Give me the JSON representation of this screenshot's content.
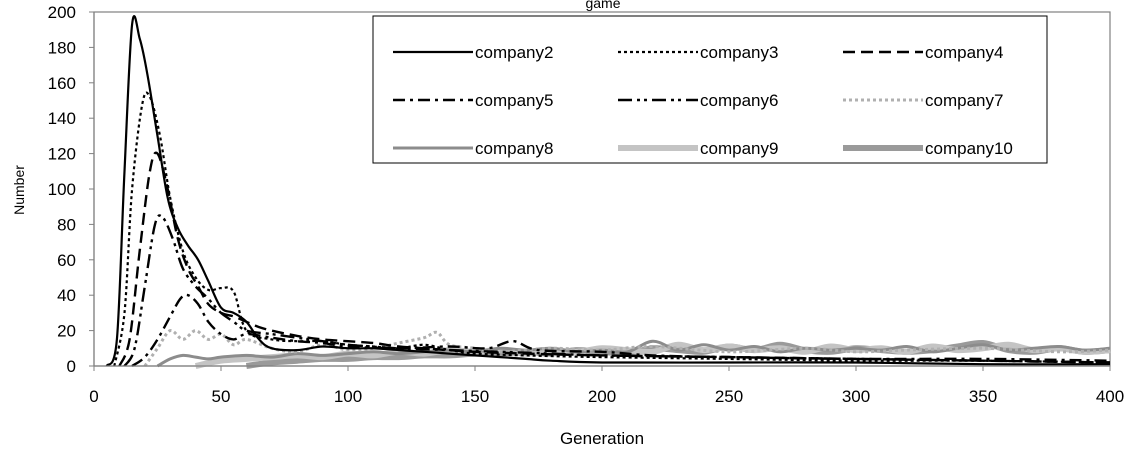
{
  "chart_data": {
    "type": "line",
    "title": "game",
    "xlabel": "Generation",
    "ylabel": "Number",
    "xlim": [
      0,
      400
    ],
    "ylim": [
      0,
      200
    ],
    "x_ticks": [
      "0",
      "50",
      "100",
      "150",
      "200",
      "250",
      "300",
      "350",
      "400"
    ],
    "y_ticks": [
      "0",
      "20",
      "40",
      "60",
      "80",
      "100",
      "120",
      "140",
      "160",
      "180",
      "200"
    ],
    "grid": false,
    "legend_position": "top-right",
    "series": [
      {
        "name": "company2",
        "color": "#000000",
        "style": "solid",
        "points": [
          [
            5,
            0
          ],
          [
            9,
            15
          ],
          [
            12,
            110
          ],
          [
            15,
            193
          ],
          [
            18,
            185
          ],
          [
            21,
            165
          ],
          [
            25,
            130
          ],
          [
            29,
            95
          ],
          [
            33,
            78
          ],
          [
            37,
            68
          ],
          [
            41,
            60
          ],
          [
            45,
            48
          ],
          [
            50,
            33
          ],
          [
            55,
            30
          ],
          [
            60,
            25
          ],
          [
            65,
            15
          ],
          [
            70,
            10
          ],
          [
            80,
            9
          ],
          [
            90,
            11
          ],
          [
            100,
            10
          ],
          [
            110,
            10
          ],
          [
            120,
            9
          ],
          [
            130,
            8
          ],
          [
            140,
            7
          ],
          [
            150,
            6
          ],
          [
            160,
            5
          ],
          [
            170,
            4
          ],
          [
            180,
            3
          ],
          [
            200,
            2
          ],
          [
            250,
            2
          ],
          [
            300,
            2
          ],
          [
            350,
            1
          ],
          [
            400,
            1
          ]
        ]
      },
      {
        "name": "company3",
        "color": "#000000",
        "style": "dotted",
        "points": [
          [
            8,
            0
          ],
          [
            12,
            30
          ],
          [
            15,
            100
          ],
          [
            19,
            148
          ],
          [
            22,
            152
          ],
          [
            26,
            130
          ],
          [
            30,
            95
          ],
          [
            35,
            65
          ],
          [
            40,
            50
          ],
          [
            45,
            43
          ],
          [
            50,
            44
          ],
          [
            55,
            42
          ],
          [
            60,
            20
          ],
          [
            70,
            15
          ],
          [
            80,
            14
          ],
          [
            90,
            14
          ],
          [
            100,
            12
          ],
          [
            110,
            11
          ],
          [
            120,
            10
          ],
          [
            130,
            12
          ],
          [
            140,
            9
          ],
          [
            150,
            7
          ],
          [
            170,
            6
          ],
          [
            200,
            5
          ],
          [
            250,
            4
          ],
          [
            300,
            3
          ],
          [
            350,
            3
          ],
          [
            400,
            2
          ]
        ]
      },
      {
        "name": "company4",
        "color": "#000000",
        "style": "dashed",
        "points": [
          [
            10,
            0
          ],
          [
            14,
            15
          ],
          [
            18,
            65
          ],
          [
            22,
            110
          ],
          [
            25,
            120
          ],
          [
            29,
            100
          ],
          [
            33,
            72
          ],
          [
            37,
            55
          ],
          [
            41,
            45
          ],
          [
            45,
            35
          ],
          [
            50,
            30
          ],
          [
            55,
            28
          ],
          [
            60,
            25
          ],
          [
            65,
            22
          ],
          [
            70,
            20
          ],
          [
            80,
            17
          ],
          [
            90,
            15
          ],
          [
            100,
            14
          ],
          [
            110,
            13
          ],
          [
            120,
            11
          ],
          [
            130,
            10
          ],
          [
            140,
            9
          ],
          [
            150,
            8
          ],
          [
            170,
            7
          ],
          [
            200,
            6
          ],
          [
            250,
            5
          ],
          [
            300,
            4
          ],
          [
            350,
            3
          ],
          [
            400,
            2
          ]
        ]
      },
      {
        "name": "company5",
        "color": "#000000",
        "style": "dashdot",
        "points": [
          [
            15,
            0
          ],
          [
            20,
            5
          ],
          [
            25,
            15
          ],
          [
            30,
            28
          ],
          [
            34,
            38
          ],
          [
            37,
            40
          ],
          [
            41,
            35
          ],
          [
            45,
            25
          ],
          [
            50,
            18
          ],
          [
            55,
            15
          ],
          [
            60,
            18
          ],
          [
            70,
            16
          ],
          [
            80,
            14
          ],
          [
            90,
            13
          ],
          [
            100,
            11
          ],
          [
            120,
            10
          ],
          [
            140,
            11
          ],
          [
            155,
            10
          ],
          [
            165,
            14
          ],
          [
            175,
            9
          ],
          [
            200,
            8
          ],
          [
            220,
            6
          ],
          [
            250,
            5
          ],
          [
            300,
            4
          ],
          [
            350,
            4
          ],
          [
            400,
            3
          ]
        ]
      },
      {
        "name": "company6",
        "color": "#000000",
        "style": "dashdotdot",
        "points": [
          [
            12,
            0
          ],
          [
            16,
            10
          ],
          [
            20,
            45
          ],
          [
            24,
            80
          ],
          [
            27,
            84
          ],
          [
            31,
            72
          ],
          [
            35,
            55
          ],
          [
            40,
            45
          ],
          [
            45,
            38
          ],
          [
            50,
            30
          ],
          [
            55,
            25
          ],
          [
            60,
            20
          ],
          [
            70,
            18
          ],
          [
            80,
            16
          ],
          [
            90,
            14
          ],
          [
            100,
            12
          ],
          [
            120,
            10
          ],
          [
            140,
            9
          ],
          [
            160,
            8
          ],
          [
            180,
            7
          ],
          [
            200,
            6
          ],
          [
            250,
            5
          ],
          [
            300,
            4
          ],
          [
            350,
            3
          ],
          [
            400,
            2
          ]
        ]
      },
      {
        "name": "company7",
        "color": "#b0b0b0",
        "style": "dotted",
        "points": [
          [
            20,
            0
          ],
          [
            25,
            10
          ],
          [
            30,
            20
          ],
          [
            35,
            15
          ],
          [
            40,
            20
          ],
          [
            45,
            15
          ],
          [
            50,
            18
          ],
          [
            55,
            12
          ],
          [
            60,
            15
          ],
          [
            70,
            10
          ],
          [
            80,
            8
          ],
          [
            90,
            12
          ],
          [
            100,
            9
          ],
          [
            110,
            10
          ],
          [
            120,
            13
          ],
          [
            130,
            16
          ],
          [
            135,
            19
          ],
          [
            140,
            12
          ],
          [
            150,
            10
          ],
          [
            160,
            8
          ],
          [
            180,
            10
          ],
          [
            200,
            9
          ],
          [
            220,
            11
          ],
          [
            250,
            8
          ],
          [
            280,
            10
          ],
          [
            300,
            8
          ],
          [
            320,
            9
          ],
          [
            350,
            10
          ],
          [
            380,
            8
          ],
          [
            400,
            9
          ]
        ]
      },
      {
        "name": "company8",
        "color": "#8c8c8c",
        "style": "solid",
        "points": [
          [
            25,
            0
          ],
          [
            30,
            4
          ],
          [
            35,
            6
          ],
          [
            40,
            5
          ],
          [
            45,
            4
          ],
          [
            50,
            5
          ],
          [
            60,
            6
          ],
          [
            70,
            5
          ],
          [
            80,
            7
          ],
          [
            90,
            6
          ],
          [
            100,
            7
          ],
          [
            110,
            8
          ],
          [
            120,
            7
          ],
          [
            130,
            8
          ],
          [
            140,
            9
          ],
          [
            150,
            8
          ],
          [
            160,
            10
          ],
          [
            170,
            9
          ],
          [
            180,
            10
          ],
          [
            190,
            8
          ],
          [
            200,
            9
          ],
          [
            210,
            8
          ],
          [
            220,
            14
          ],
          [
            230,
            9
          ],
          [
            240,
            12
          ],
          [
            250,
            9
          ],
          [
            260,
            11
          ],
          [
            270,
            8
          ],
          [
            280,
            10
          ],
          [
            290,
            9
          ],
          [
            300,
            10
          ],
          [
            310,
            9
          ],
          [
            320,
            11
          ],
          [
            330,
            8
          ],
          [
            340,
            10
          ],
          [
            350,
            12
          ],
          [
            360,
            9
          ],
          [
            370,
            10
          ],
          [
            380,
            11
          ],
          [
            390,
            9
          ],
          [
            400,
            10
          ]
        ]
      },
      {
        "name": "company9",
        "color": "#c4c4c4",
        "style": "thick",
        "points": [
          [
            40,
            0
          ],
          [
            50,
            3
          ],
          [
            60,
            4
          ],
          [
            70,
            5
          ],
          [
            80,
            6
          ],
          [
            90,
            5
          ],
          [
            100,
            7
          ],
          [
            110,
            6
          ],
          [
            120,
            8
          ],
          [
            130,
            7
          ],
          [
            140,
            9
          ],
          [
            150,
            8
          ],
          [
            160,
            9
          ],
          [
            170,
            7
          ],
          [
            180,
            9
          ],
          [
            190,
            8
          ],
          [
            200,
            10
          ],
          [
            210,
            9
          ],
          [
            220,
            8
          ],
          [
            230,
            12
          ],
          [
            240,
            9
          ],
          [
            250,
            11
          ],
          [
            260,
            9
          ],
          [
            270,
            10
          ],
          [
            280,
            8
          ],
          [
            290,
            11
          ],
          [
            300,
            9
          ],
          [
            310,
            10
          ],
          [
            320,
            8
          ],
          [
            330,
            11
          ],
          [
            340,
            9
          ],
          [
            350,
            10
          ],
          [
            360,
            12
          ],
          [
            370,
            9
          ],
          [
            380,
            10
          ],
          [
            390,
            8
          ],
          [
            400,
            9
          ]
        ]
      },
      {
        "name": "company10",
        "color": "#9a9a9a",
        "style": "thick",
        "points": [
          [
            60,
            0
          ],
          [
            70,
            2
          ],
          [
            80,
            3
          ],
          [
            90,
            4
          ],
          [
            100,
            4
          ],
          [
            110,
            5
          ],
          [
            120,
            5
          ],
          [
            130,
            6
          ],
          [
            140,
            6
          ],
          [
            150,
            7
          ],
          [
            160,
            7
          ],
          [
            170,
            8
          ],
          [
            180,
            7
          ],
          [
            190,
            9
          ],
          [
            200,
            8
          ],
          [
            210,
            7
          ],
          [
            220,
            10
          ],
          [
            230,
            9
          ],
          [
            240,
            8
          ],
          [
            250,
            11
          ],
          [
            260,
            9
          ],
          [
            270,
            12
          ],
          [
            280,
            9
          ],
          [
            290,
            8
          ],
          [
            300,
            10
          ],
          [
            310,
            9
          ],
          [
            320,
            8
          ],
          [
            330,
            9
          ],
          [
            340,
            11
          ],
          [
            350,
            13
          ],
          [
            360,
            9
          ],
          [
            370,
            8
          ],
          [
            380,
            10
          ],
          [
            390,
            8
          ],
          [
            400,
            9
          ]
        ]
      }
    ]
  }
}
